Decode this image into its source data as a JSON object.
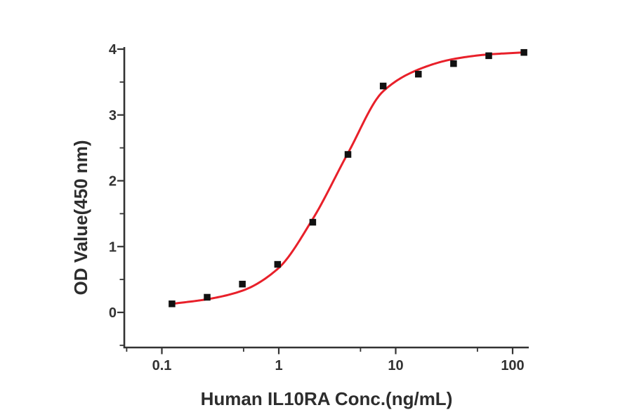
{
  "figure": {
    "background_color": "#ffffff"
  },
  "chart_data": {
    "type": "scatter",
    "title": "",
    "xlabel": "Human IL10RA Conc.(ng/mL)",
    "ylabel": "OD Value(450 nm)",
    "x_scale": "log",
    "y_scale": "linear",
    "x_range": [
      0.0476,
      137
    ],
    "y_range": [
      -0.533,
      4
    ],
    "grid": false,
    "legend": "none",
    "x_major_ticks": {
      "values": [
        0.1,
        1,
        10,
        100
      ],
      "labels": [
        "0.1",
        "1",
        "10",
        "100"
      ]
    },
    "x_minor_ticks": [
      0.05,
      0.5,
      5,
      50
    ],
    "y_major_ticks": {
      "values": [
        0,
        1,
        2,
        3,
        4
      ],
      "labels": [
        "0",
        "1",
        "2",
        "3",
        "4"
      ]
    },
    "y_minor_ticks": [
      -0.5,
      0.5,
      1.5,
      2.5,
      3.5
    ],
    "series": [
      {
        "name": "measured-od-points",
        "type": "scatter",
        "marker": "square",
        "x": [
          0.122,
          0.244,
          0.488,
          0.977,
          1.953,
          3.906,
          7.813,
          15.625,
          31.25,
          62.5,
          125
        ],
        "y": [
          0.13,
          0.23,
          0.43,
          0.73,
          1.37,
          2.4,
          3.44,
          3.62,
          3.78,
          3.9,
          3.95
        ]
      },
      {
        "name": "4pl-fit-curve",
        "type": "line",
        "x": [
          0.122,
          0.244,
          0.488,
          0.977,
          1.953,
          3.906,
          7.813,
          15.625,
          31.25,
          62.5,
          125
        ],
        "y": [
          0.13,
          0.2,
          0.33,
          0.66,
          1.42,
          2.42,
          3.36,
          3.69,
          3.85,
          3.92,
          3.95
        ]
      }
    ],
    "colors": {
      "marker": "#111111",
      "fit_line": "#e8202a",
      "axis": "#333333",
      "tick_label": "#333333",
      "title_text": "#2d2d2d"
    }
  }
}
